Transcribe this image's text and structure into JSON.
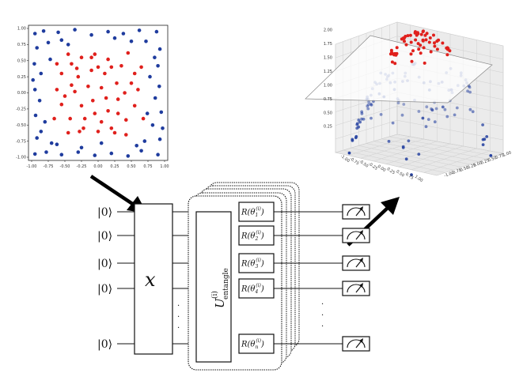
{
  "chart_data": [
    {
      "type": "scatter",
      "xlim": [
        -1.0,
        1.0
      ],
      "ylim": [
        -1.0,
        1.0
      ],
      "xticks": [
        "-1.00",
        "-0.75",
        "-0.50",
        "-0.25",
        "0.00",
        "0.25",
        "0.50",
        "0.75",
        "1.00"
      ],
      "yticks": [
        "1.00",
        "0.75",
        "0.50",
        "0.25",
        "0.00",
        "-0.25",
        "-0.50",
        "-0.75",
        "-1.00"
      ],
      "grid": false,
      "series": [
        {
          "color": "#1f3c9e",
          "points": [
            [
              -0.95,
              0.92
            ],
            [
              -0.82,
              0.96
            ],
            [
              -0.6,
              0.94
            ],
            [
              -0.35,
              0.98
            ],
            [
              -0.1,
              0.9
            ],
            [
              0.15,
              0.95
            ],
            [
              0.38,
              0.92
            ],
            [
              0.62,
              0.97
            ],
            [
              0.88,
              0.95
            ],
            [
              -0.92,
              0.7
            ],
            [
              -0.75,
              0.78
            ],
            [
              0.72,
              0.8
            ],
            [
              0.93,
              0.68
            ],
            [
              -0.96,
              0.45
            ],
            [
              -0.86,
              0.3
            ],
            [
              0.9,
              0.42
            ],
            [
              0.78,
              0.25
            ],
            [
              -0.95,
              0.05
            ],
            [
              -0.88,
              -0.12
            ],
            [
              0.92,
              0.1
            ],
            [
              0.86,
              -0.08
            ],
            [
              -0.94,
              -0.35
            ],
            [
              -0.8,
              -0.45
            ],
            [
              0.95,
              -0.3
            ],
            [
              0.82,
              -0.5
            ],
            [
              -0.92,
              -0.7
            ],
            [
              -0.7,
              -0.78
            ],
            [
              0.7,
              -0.75
            ],
            [
              0.93,
              -0.72
            ],
            [
              -0.95,
              -0.95
            ],
            [
              -0.78,
              -0.92
            ],
            [
              -0.55,
              -0.96
            ],
            [
              -0.3,
              -0.92
            ],
            [
              -0.05,
              -0.97
            ],
            [
              0.2,
              -0.94
            ],
            [
              0.45,
              -0.98
            ],
            [
              0.65,
              -0.9
            ],
            [
              0.9,
              -0.96
            ],
            [
              -0.55,
              0.82
            ],
            [
              0.5,
              0.8
            ],
            [
              -0.62,
              -0.8
            ],
            [
              0.58,
              -0.82
            ],
            [
              -0.98,
              0.2
            ],
            [
              0.97,
              -0.55
            ],
            [
              0.25,
              0.85
            ],
            [
              -0.25,
              -0.85
            ],
            [
              -0.45,
              0.75
            ],
            [
              0.05,
              -0.78
            ],
            [
              -0.72,
              0.52
            ],
            [
              0.74,
              -0.32
            ],
            [
              -0.86,
              -0.6
            ],
            [
              0.85,
              0.55
            ]
          ]
        },
        {
          "color": "#e0201c",
          "points": [
            [
              -0.55,
              0.3
            ],
            [
              -0.4,
              0.45
            ],
            [
              -0.25,
              0.55
            ],
            [
              -0.05,
              0.6
            ],
            [
              0.15,
              0.52
            ],
            [
              0.35,
              0.42
            ],
            [
              0.55,
              0.3
            ],
            [
              0.6,
              0.05
            ],
            [
              0.55,
              -0.2
            ],
            [
              0.42,
              -0.42
            ],
            [
              0.2,
              -0.55
            ],
            [
              0.0,
              -0.6
            ],
            [
              -0.22,
              -0.55
            ],
            [
              -0.42,
              -0.4
            ],
            [
              -0.55,
              -0.18
            ],
            [
              -0.62,
              0.05
            ],
            [
              -0.3,
              0.25
            ],
            [
              -0.1,
              0.35
            ],
            [
              0.1,
              0.3
            ],
            [
              0.28,
              0.15
            ],
            [
              0.3,
              -0.1
            ],
            [
              0.15,
              -0.28
            ],
            [
              -0.05,
              -0.32
            ],
            [
              -0.25,
              -0.2
            ],
            [
              -0.35,
              0.02
            ],
            [
              -0.15,
              0.1
            ],
            [
              0.05,
              0.08
            ],
            [
              0.12,
              -0.08
            ],
            [
              -0.08,
              -0.12
            ],
            [
              -0.45,
              0.6
            ],
            [
              0.45,
              0.62
            ],
            [
              -0.62,
              0.45
            ],
            [
              0.65,
              0.4
            ],
            [
              0.68,
              -0.4
            ],
            [
              -0.66,
              -0.4
            ],
            [
              -0.45,
              -0.62
            ],
            [
              0.42,
              -0.65
            ],
            [
              0.0,
              0.4
            ],
            [
              0.4,
              0.0
            ],
            [
              -0.4,
              0.12
            ],
            [
              0.2,
              0.4
            ],
            [
              -0.2,
              -0.4
            ],
            [
              0.3,
              -0.32
            ],
            [
              -0.32,
              0.38
            ],
            [
              0.5,
              0.15
            ],
            [
              -0.5,
              -0.05
            ],
            [
              0.05,
              -0.45
            ],
            [
              -0.1,
              0.55
            ],
            [
              0.25,
              -0.62
            ],
            [
              -0.28,
              -0.6
            ]
          ]
        }
      ]
    },
    {
      "type": "scatter",
      "zlim": [
        0.0,
        2.0
      ],
      "zticks": [
        "2.00",
        "1.75",
        "1.50",
        "1.25",
        "1.00",
        "0.75",
        "0.50",
        "0.25"
      ],
      "xticks": [
        "-1.00",
        "-0.75",
        "-0.50",
        "-0.25",
        "0.00",
        "0.25",
        "0.50",
        "0.75",
        "1.00"
      ],
      "yticks": [
        "-1.00",
        "-0.75",
        "-0.50",
        "-0.25",
        "0.00",
        "0.25",
        "0.50",
        "0.75",
        "1.00"
      ],
      "grid": true,
      "plane_z": 1.2,
      "series": [
        {
          "color": "#e0201c",
          "count": 60
        },
        {
          "color": "#1f3c9e",
          "count": 110
        }
      ]
    }
  ],
  "circuit": {
    "qubit_labels": [
      "|0⟩",
      "|0⟩",
      "|0⟩",
      "|0⟩",
      "|0⟩"
    ],
    "encoder_label": "x",
    "entangle_label": "U",
    "entangle_sup": "(i)",
    "entangle_sub": "entangle",
    "rotation_gates": [
      {
        "label": "R(θ",
        "sub": "1",
        "sup": "(i)"
      },
      {
        "label": "R(θ",
        "sub": "2",
        "sup": "(i)"
      },
      {
        "label": "R(θ",
        "sub": "3",
        "sup": "(i)"
      },
      {
        "label": "R(θ",
        "sub": "4",
        "sup": "(i)"
      },
      {
        "label": "R(θ",
        "sub": "n",
        "sup": "(i)"
      }
    ],
    "ellipsis": "·",
    "measurement_count": 5
  }
}
